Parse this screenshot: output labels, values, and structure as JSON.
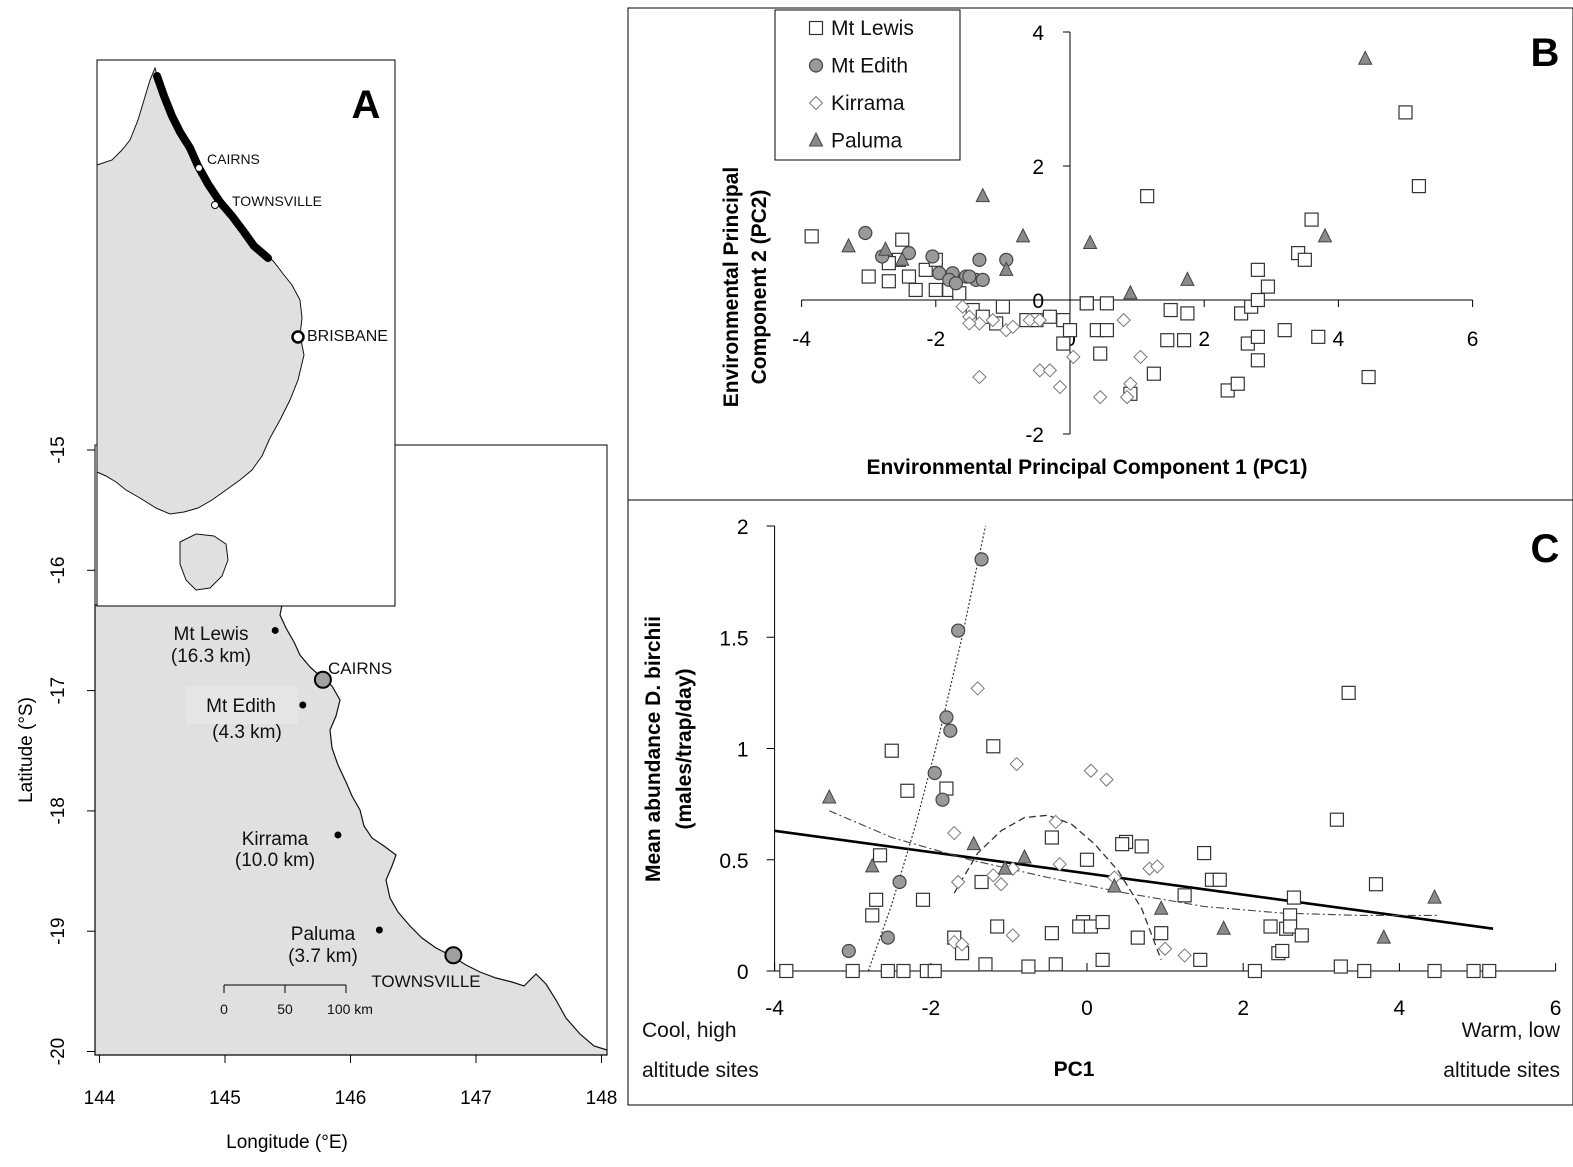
{
  "panel_a": {
    "letter": "A",
    "xlabel": "Longitude (°E)",
    "ylabel": "Latitude (°S)",
    "x_ticks": [
      "144",
      "145",
      "146",
      "147",
      "148"
    ],
    "y_ticks": [
      "-15",
      "-16",
      "-17",
      "-18",
      "-19",
      "-20"
    ],
    "inset_labels": {
      "cairns": "CAIRNS",
      "townsville": "TOWNSVILLE",
      "brisbane": "BRISBANE"
    },
    "sites": [
      {
        "name": "Mt Lewis",
        "dist": "(16.3 km)",
        "lon": 145.4,
        "lat": -16.5
      },
      {
        "name": "Mt Edith",
        "dist": "(4.3 km)",
        "lon": 145.62,
        "lat": -17.12
      },
      {
        "name": "Kirrama",
        "dist": "(10.0 km)",
        "lon": 145.9,
        "lat": -18.2
      },
      {
        "name": "Paluma",
        "dist": "(3.7 km)",
        "lon": 146.23,
        "lat": -18.99
      }
    ],
    "cities": [
      {
        "name": "CAIRNS",
        "lon": 145.78,
        "lat": -16.91
      },
      {
        "name": "TOWNSVILLE",
        "lon": 146.82,
        "lat": -19.2
      }
    ],
    "scalebar": [
      "0",
      "50",
      "100 km"
    ]
  },
  "chart_data": [
    {
      "panel": "B",
      "type": "scatter",
      "xlabel": "Environmental Principal Component 1 (PC1)",
      "ylabel": [
        "Environmental Principal",
        "Component 2 (PC2)"
      ],
      "xlim": [
        -4,
        6
      ],
      "ylim": [
        -2,
        4
      ],
      "x_ticks": [
        "-4",
        "-2",
        "0",
        "2",
        "4",
        "6"
      ],
      "y_ticks": [
        "-2",
        "0",
        "2",
        "4"
      ],
      "legend": [
        "Mt Lewis",
        "Mt Edith",
        "Kirrama",
        "Paluma"
      ],
      "series": [
        {
          "name": "Mt Lewis",
          "marker": "square",
          "points": [
            [
              -3.85,
              0.95
            ],
            [
              -3.0,
              0.35
            ],
            [
              -2.7,
              0.28
            ],
            [
              -2.4,
              0.35
            ],
            [
              -2.3,
              0.15
            ],
            [
              -2.0,
              0.15
            ],
            [
              -1.8,
              0.15
            ],
            [
              -2.55,
              0.6
            ],
            [
              -2.15,
              0.45
            ],
            [
              -2.5,
              0.9
            ],
            [
              -2.7,
              0.55
            ],
            [
              -2.0,
              0.6
            ],
            [
              -1.65,
              0.1
            ],
            [
              -1.45,
              -0.15
            ],
            [
              -1.3,
              -0.25
            ],
            [
              -1.1,
              -0.35
            ],
            [
              -1.0,
              -0.1
            ],
            [
              -0.65,
              -0.3
            ],
            [
              -0.5,
              -0.3
            ],
            [
              -0.3,
              -0.25
            ],
            [
              -0.1,
              -0.3
            ],
            [
              -0.1,
              -0.65
            ],
            [
              0.0,
              -0.45
            ],
            [
              0.25,
              -0.05
            ],
            [
              0.4,
              -0.45
            ],
            [
              0.25,
              -0.05
            ],
            [
              0.55,
              -0.05
            ],
            [
              0.55,
              -0.45
            ],
            [
              0.45,
              -0.8
            ],
            [
              0.9,
              -1.4
            ],
            [
              1.25,
              -1.1
            ],
            [
              1.45,
              -0.6
            ],
            [
              1.5,
              -0.15
            ],
            [
              1.7,
              -0.6
            ],
            [
              1.75,
              -0.2
            ],
            [
              2.35,
              -1.35
            ],
            [
              2.5,
              -1.25
            ],
            [
              2.55,
              -0.2
            ],
            [
              2.7,
              -0.1
            ],
            [
              2.65,
              -0.65
            ],
            [
              2.8,
              -0.55
            ],
            [
              2.8,
              -0.9
            ],
            [
              2.8,
              0.45
            ],
            [
              2.8,
              0.0
            ],
            [
              2.95,
              0.2
            ],
            [
              3.2,
              -0.45
            ],
            [
              3.4,
              0.7
            ],
            [
              3.5,
              0.6
            ],
            [
              3.6,
              1.2
            ],
            [
              3.7,
              -0.55
            ],
            [
              4.45,
              -1.15
            ],
            [
              5.0,
              2.8
            ],
            [
              5.2,
              1.7
            ],
            [
              1.15,
              1.55
            ]
          ]
        },
        {
          "name": "Mt Edith",
          "marker": "circle",
          "points": [
            [
              -3.05,
              1.0
            ],
            [
              -2.8,
              0.65
            ],
            [
              -2.4,
              0.7
            ],
            [
              -2.05,
              0.65
            ],
            [
              -1.95,
              0.4
            ],
            [
              -1.75,
              0.4
            ],
            [
              -1.55,
              0.35
            ],
            [
              -1.4,
              0.3
            ],
            [
              -1.3,
              0.3
            ],
            [
              -1.8,
              0.3
            ],
            [
              -1.35,
              0.6
            ],
            [
              -0.95,
              0.6
            ],
            [
              -1.7,
              0.25
            ],
            [
              -1.5,
              0.35
            ]
          ]
        },
        {
          "name": "Kirrama",
          "marker": "diamond",
          "points": [
            [
              -1.6,
              -0.1
            ],
            [
              -1.5,
              -0.25
            ],
            [
              -1.35,
              -0.35
            ],
            [
              -1.15,
              -0.3
            ],
            [
              -0.95,
              -0.45
            ],
            [
              -0.85,
              -0.4
            ],
            [
              -0.6,
              -0.3
            ],
            [
              -0.45,
              -0.3
            ],
            [
              -1.35,
              -1.15
            ],
            [
              -0.45,
              -1.05
            ],
            [
              -0.3,
              -1.05
            ],
            [
              -0.15,
              -1.3
            ],
            [
              0.05,
              -0.85
            ],
            [
              0.45,
              -1.45
            ],
            [
              0.85,
              -1.45
            ],
            [
              0.9,
              -1.25
            ],
            [
              1.05,
              -0.85
            ],
            [
              0.8,
              -0.3
            ],
            [
              -1.5,
              -0.35
            ]
          ]
        },
        {
          "name": "Paluma",
          "marker": "triangle",
          "points": [
            [
              -3.3,
              0.8
            ],
            [
              -2.75,
              0.75
            ],
            [
              -2.5,
              0.6
            ],
            [
              -1.3,
              1.55
            ],
            [
              -0.7,
              0.95
            ],
            [
              -0.95,
              0.45
            ],
            [
              0.3,
              0.85
            ],
            [
              0.9,
              0.1
            ],
            [
              1.75,
              0.3
            ],
            [
              3.8,
              0.95
            ],
            [
              4.4,
              3.6
            ]
          ]
        }
      ]
    },
    {
      "panel": "C",
      "type": "scatter",
      "xlabel": "PC1",
      "ylabel": [
        "Mean abundance D. birchii",
        "(males/trap/day)"
      ],
      "xlim": [
        -4,
        6
      ],
      "ylim": [
        0,
        2
      ],
      "x_ticks": [
        "-4",
        "-2",
        "0",
        "2",
        "4",
        "6"
      ],
      "y_ticks": [
        "0",
        "0.5",
        "1",
        "1.5",
        "2"
      ],
      "corner_labels": {
        "left_top": "Cool, high",
        "left_bottom": "altitude sites",
        "right_top": "Warm, low",
        "right_bottom": "altitude sites"
      },
      "series": [
        {
          "name": "Mt Lewis",
          "marker": "square",
          "points": [
            [
              -3.85,
              0
            ],
            [
              -3.0,
              0
            ],
            [
              -2.55,
              0
            ],
            [
              -2.35,
              0
            ],
            [
              -2.05,
              0
            ],
            [
              -1.95,
              0
            ],
            [
              -1.3,
              0.03
            ],
            [
              -0.75,
              0.02
            ],
            [
              -0.4,
              0.03
            ],
            [
              0.2,
              0.05
            ],
            [
              0.65,
              0.15
            ],
            [
              0.95,
              0.17
            ],
            [
              1.45,
              0.05
            ],
            [
              2.15,
              0
            ],
            [
              3.25,
              0.02
            ],
            [
              3.55,
              0
            ],
            [
              4.45,
              0
            ],
            [
              4.95,
              0
            ],
            [
              5.15,
              0
            ],
            [
              -2.75,
              0.25
            ],
            [
              -2.7,
              0.32
            ],
            [
              -2.65,
              0.52
            ],
            [
              -2.5,
              0.99
            ],
            [
              -2.3,
              0.81
            ],
            [
              -2.1,
              0.32
            ],
            [
              -1.8,
              0.82
            ],
            [
              -1.6,
              0.08
            ],
            [
              -1.35,
              0.4
            ],
            [
              -1.15,
              0.2
            ],
            [
              -1.2,
              1.01
            ],
            [
              -0.45,
              0.17
            ],
            [
              -0.05,
              0.22
            ],
            [
              -0.1,
              0.2
            ],
            [
              0.05,
              0.2
            ],
            [
              0.2,
              0.22
            ],
            [
              -0.45,
              0.6
            ],
            [
              0.0,
              0.5
            ],
            [
              0.5,
              0.58
            ],
            [
              0.45,
              0.57
            ],
            [
              0.7,
              0.56
            ],
            [
              1.25,
              0.34
            ],
            [
              1.5,
              0.53
            ],
            [
              1.6,
              0.41
            ],
            [
              1.7,
              0.41
            ],
            [
              2.35,
              0.2
            ],
            [
              2.45,
              0.08
            ],
            [
              2.5,
              0.09
            ],
            [
              2.55,
              0.19
            ],
            [
              2.6,
              0.25
            ],
            [
              2.6,
              0.2
            ],
            [
              2.75,
              0.16
            ],
            [
              3.35,
              1.25
            ],
            [
              3.2,
              0.68
            ],
            [
              3.7,
              0.39
            ],
            [
              2.65,
              0.33
            ],
            [
              -1.7,
              0.15
            ]
          ]
        },
        {
          "name": "Mt Edith",
          "marker": "circle",
          "points": [
            [
              -3.05,
              0.09
            ],
            [
              -2.55,
              0.15
            ],
            [
              -2.4,
              0.4
            ],
            [
              -1.95,
              0.89
            ],
            [
              -1.85,
              0.77
            ],
            [
              -1.8,
              1.14
            ],
            [
              -1.75,
              1.08
            ],
            [
              -1.65,
              1.53
            ],
            [
              -1.35,
              1.85
            ]
          ]
        },
        {
          "name": "Kirrama",
          "marker": "diamond",
          "points": [
            [
              -1.7,
              0.62
            ],
            [
              -1.65,
              0.4
            ],
            [
              -1.7,
              0.13
            ],
            [
              -1.6,
              0.12
            ],
            [
              -1.4,
              1.27
            ],
            [
              -1.2,
              0.43
            ],
            [
              -1.1,
              0.39
            ],
            [
              -0.95,
              0.16
            ],
            [
              -0.9,
              0.93
            ],
            [
              -0.4,
              0.67
            ],
            [
              -0.35,
              0.48
            ],
            [
              0.05,
              0.9
            ],
            [
              0.25,
              0.86
            ],
            [
              0.35,
              0.42
            ],
            [
              0.8,
              0.46
            ],
            [
              0.9,
              0.47
            ],
            [
              1.0,
              0.1
            ],
            [
              1.25,
              0.07
            ],
            [
              -0.95,
              0.46
            ]
          ]
        },
        {
          "name": "Paluma",
          "marker": "triangle",
          "points": [
            [
              -3.3,
              0.78
            ],
            [
              -2.75,
              0.47
            ],
            [
              -1.45,
              0.57
            ],
            [
              -1.05,
              0.46
            ],
            [
              -0.8,
              0.51
            ],
            [
              0.35,
              0.38
            ],
            [
              0.95,
              0.28
            ],
            [
              1.75,
              0.19
            ],
            [
              3.8,
              0.15
            ],
            [
              4.45,
              0.33
            ]
          ]
        }
      ],
      "fits": [
        {
          "name": "overall",
          "style": "solid",
          "points": [
            [
              -4,
              0.63
            ],
            [
              5.2,
              0.19
            ]
          ]
        },
        {
          "name": "Mt Edith",
          "style": "dotted",
          "points": [
            [
              -2.8,
              0
            ],
            [
              -2.5,
              0.3
            ],
            [
              -2.2,
              0.65
            ],
            [
              -1.9,
              1.05
            ],
            [
              -1.6,
              1.5
            ],
            [
              -1.3,
              2.0
            ]
          ]
        },
        {
          "name": "Kirrama",
          "style": "dashed",
          "points": [
            [
              -1.7,
              0.35
            ],
            [
              -1.4,
              0.53
            ],
            [
              -1.1,
              0.63
            ],
            [
              -0.8,
              0.69
            ],
            [
              -0.5,
              0.7
            ],
            [
              -0.2,
              0.66
            ],
            [
              0.1,
              0.57
            ],
            [
              0.4,
              0.45
            ],
            [
              0.7,
              0.28
            ],
            [
              0.95,
              0.05
            ]
          ]
        },
        {
          "name": "Paluma",
          "style": "dashdot",
          "points": [
            [
              -3.3,
              0.72
            ],
            [
              -2.5,
              0.6
            ],
            [
              -1.5,
              0.5
            ],
            [
              -0.5,
              0.42
            ],
            [
              0.5,
              0.35
            ],
            [
              1.5,
              0.29
            ],
            [
              2.5,
              0.26
            ],
            [
              3.5,
              0.25
            ],
            [
              4.5,
              0.25
            ]
          ]
        }
      ]
    }
  ]
}
